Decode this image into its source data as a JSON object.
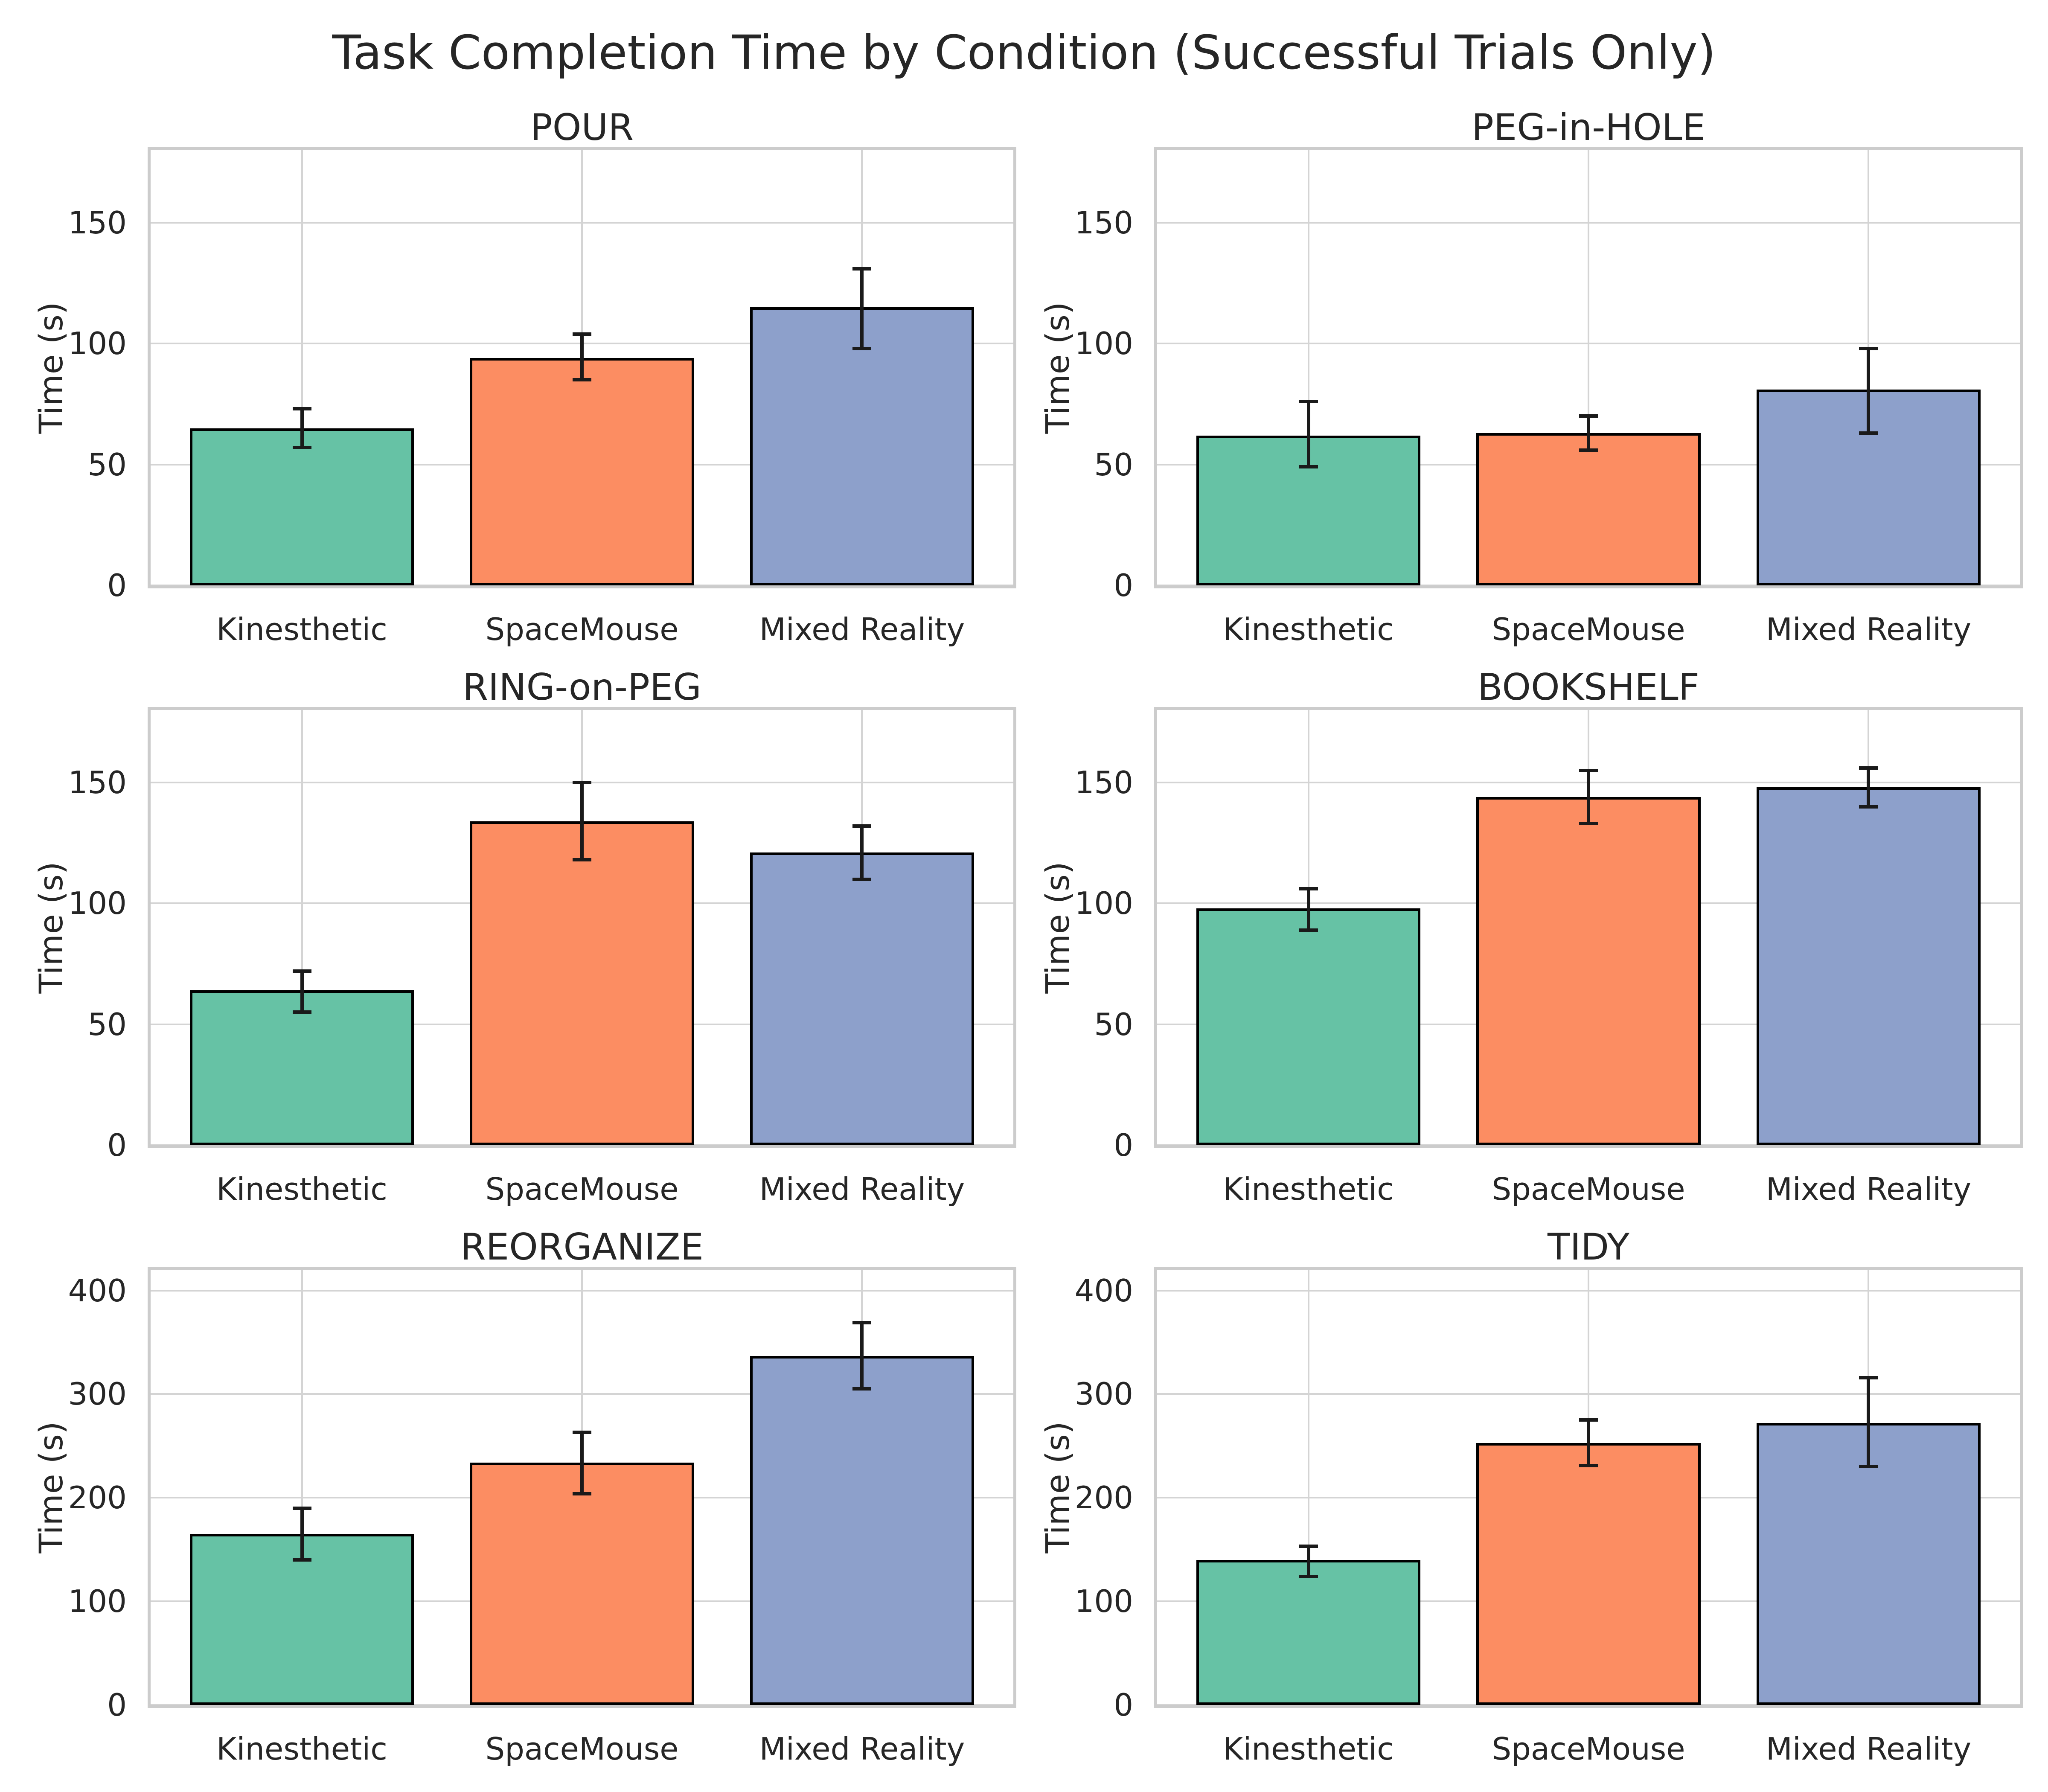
{
  "figure": {
    "title": "Task Completion Time by Condition (Successful Trials Only)"
  },
  "chart_data": {
    "type": "bar",
    "title": "Task Completion Time by Condition (Successful Trials Only)",
    "categories": [
      "Kinesthetic",
      "SpaceMouse",
      "Mixed Reality"
    ],
    "ylabel": "Time (s)",
    "palette": [
      "#66c2a5",
      "#fc8d62",
      "#8da0cb"
    ],
    "bar_edge_color": "#000000",
    "error_bar_color": "#1a1a1a",
    "grid": true,
    "legend_position": "none",
    "subplots": [
      {
        "title": "POUR",
        "values": [
          65,
          94,
          115
        ],
        "err_low": [
          57,
          85,
          98
        ],
        "err_high": [
          73,
          104,
          131
        ],
        "yticks": [
          0,
          50,
          100,
          150
        ],
        "ylim": [
          0,
          180
        ]
      },
      {
        "title": "PEG-in-HOLE",
        "values": [
          62,
          63,
          81
        ],
        "err_low": [
          49,
          56,
          63
        ],
        "err_high": [
          76,
          70,
          98
        ],
        "yticks": [
          0,
          50,
          100,
          150
        ],
        "ylim": [
          0,
          180
        ]
      },
      {
        "title": "RING-on-PEG",
        "values": [
          64,
          134,
          121
        ],
        "err_low": [
          55,
          118,
          110
        ],
        "err_high": [
          72,
          150,
          132
        ],
        "yticks": [
          0,
          50,
          100,
          150
        ],
        "ylim": [
          0,
          180
        ]
      },
      {
        "title": "BOOKSHELF",
        "values": [
          98,
          144,
          148
        ],
        "err_low": [
          89,
          133,
          140
        ],
        "err_high": [
          106,
          155,
          156
        ],
        "yticks": [
          0,
          50,
          100,
          150
        ],
        "ylim": [
          0,
          180
        ]
      },
      {
        "title": "REORGANIZE",
        "values": [
          165,
          234,
          337
        ],
        "err_low": [
          140,
          204,
          305
        ],
        "err_high": [
          190,
          263,
          369
        ],
        "yticks": [
          0,
          100,
          200,
          300,
          400
        ],
        "ylim": [
          0,
          420
        ]
      },
      {
        "title": "TIDY",
        "values": [
          140,
          253,
          272
        ],
        "err_low": [
          124,
          231,
          230
        ],
        "err_high": [
          153,
          275,
          316
        ],
        "yticks": [
          0,
          100,
          200,
          300,
          400
        ],
        "ylim": [
          0,
          420
        ]
      }
    ]
  }
}
